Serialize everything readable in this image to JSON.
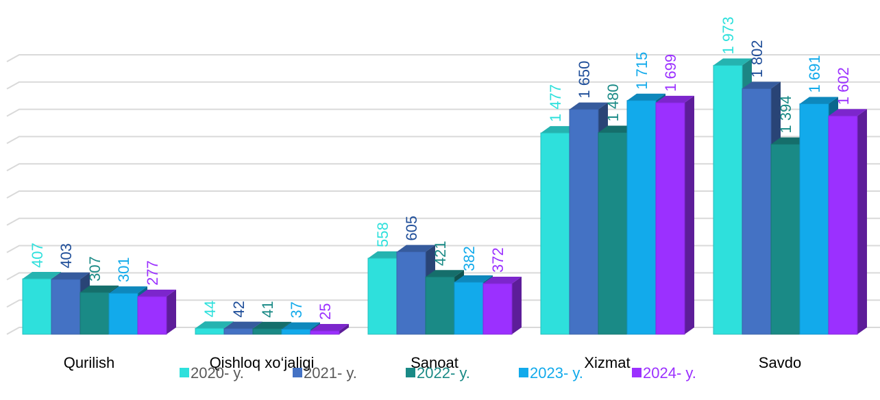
{
  "chart_data": {
    "type": "bar3d",
    "categories": [
      "Qurilish",
      "Qishloq xo‘jaligi",
      "Sanoat",
      "Xizmat",
      "Savdo"
    ],
    "series": [
      {
        "name": "2020- y.",
        "color": "#2ee0dc",
        "values": [
          407,
          44,
          558,
          1477,
          1973
        ],
        "value_labels": [
          "407",
          "44",
          "558",
          "1 477",
          "1 973"
        ]
      },
      {
        "name": "2021- y.",
        "color": "#4472c4",
        "values": [
          403,
          42,
          605,
          1650,
          1802
        ],
        "value_labels": [
          "403",
          "42",
          "605",
          "1 650",
          "1 802"
        ]
      },
      {
        "name": "2022- y.",
        "color": "#1a8a86",
        "values": [
          307,
          41,
          421,
          1480,
          1394
        ],
        "value_labels": [
          "307",
          "41",
          "421",
          "1 480",
          "1 394"
        ]
      },
      {
        "name": "2023- y.",
        "color": "#12aaeb",
        "values": [
          301,
          37,
          382,
          1715,
          1691
        ],
        "value_labels": [
          "301",
          "37",
          "382",
          "1 715",
          "1 691"
        ]
      },
      {
        "name": "2024- y.",
        "color": "#9b30ff",
        "values": [
          277,
          25,
          372,
          1699,
          1602
        ],
        "value_labels": [
          "277",
          "25",
          "372",
          "1 699",
          "1 602"
        ]
      }
    ],
    "ylim": [
      0,
      2000
    ],
    "yticks": [
      0,
      200,
      400,
      600,
      800,
      1000,
      1200,
      1400,
      1600,
      1800,
      2000
    ],
    "grid": true
  }
}
